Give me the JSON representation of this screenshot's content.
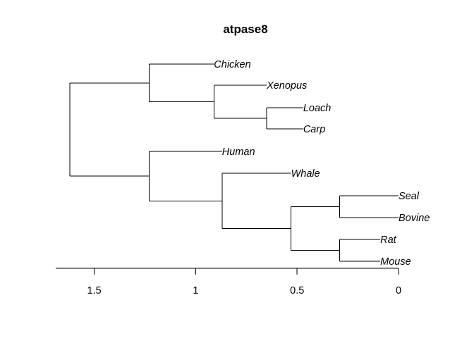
{
  "chart_data": {
    "type": "dendrogram",
    "title": "atpase8",
    "xlim": [
      1.69,
      0
    ],
    "x_ticks": [
      1.5,
      1,
      0.5,
      0
    ],
    "x_tick_labels": [
      "1.5",
      "1",
      "0.5",
      "0"
    ],
    "leaves": [
      {
        "id": "chicken",
        "label": "Chicken",
        "x": 0.91,
        "order": 1
      },
      {
        "id": "xenopus",
        "label": "Xenopus",
        "x": 0.65,
        "order": 2
      },
      {
        "id": "loach",
        "label": "Loach",
        "x": 0.47,
        "order": 3
      },
      {
        "id": "carp",
        "label": "Carp",
        "x": 0.47,
        "order": 4
      },
      {
        "id": "human",
        "label": "Human",
        "x": 0.87,
        "order": 5
      },
      {
        "id": "whale",
        "label": "Whale",
        "x": 0.53,
        "order": 6
      },
      {
        "id": "seal",
        "label": "Seal",
        "x": 0.0,
        "order": 7
      },
      {
        "id": "bovine",
        "label": "Bovine",
        "x": 0.0,
        "order": 8
      },
      {
        "id": "rat",
        "label": "Rat",
        "x": 0.09,
        "order": 9
      },
      {
        "id": "mouse",
        "label": "Mouse",
        "x": 0.09,
        "order": 10
      }
    ],
    "nodes": [
      {
        "id": "n_loach_carp",
        "x": 0.65,
        "children": [
          "loach",
          "carp"
        ]
      },
      {
        "id": "n_xenopus_fish",
        "x": 0.91,
        "children": [
          "xenopus",
          "n_loach_carp"
        ]
      },
      {
        "id": "n_nonmammal",
        "x": 1.23,
        "children": [
          "chicken",
          "n_xenopus_fish"
        ]
      },
      {
        "id": "n_seal_bovine",
        "x": 0.29,
        "children": [
          "seal",
          "bovine"
        ]
      },
      {
        "id": "n_rat_mouse",
        "x": 0.29,
        "children": [
          "rat",
          "mouse"
        ]
      },
      {
        "id": "n_eutheria_core",
        "x": 0.53,
        "children": [
          "n_seal_bovine",
          "n_rat_mouse"
        ]
      },
      {
        "id": "n_whale_group",
        "x": 0.87,
        "children": [
          "whale",
          "n_eutheria_core"
        ]
      },
      {
        "id": "n_mammal",
        "x": 1.23,
        "children": [
          "human",
          "n_whale_group"
        ]
      },
      {
        "id": "root",
        "x": 1.62,
        "children": [
          "n_nonmammal",
          "n_mammal"
        ]
      }
    ]
  }
}
